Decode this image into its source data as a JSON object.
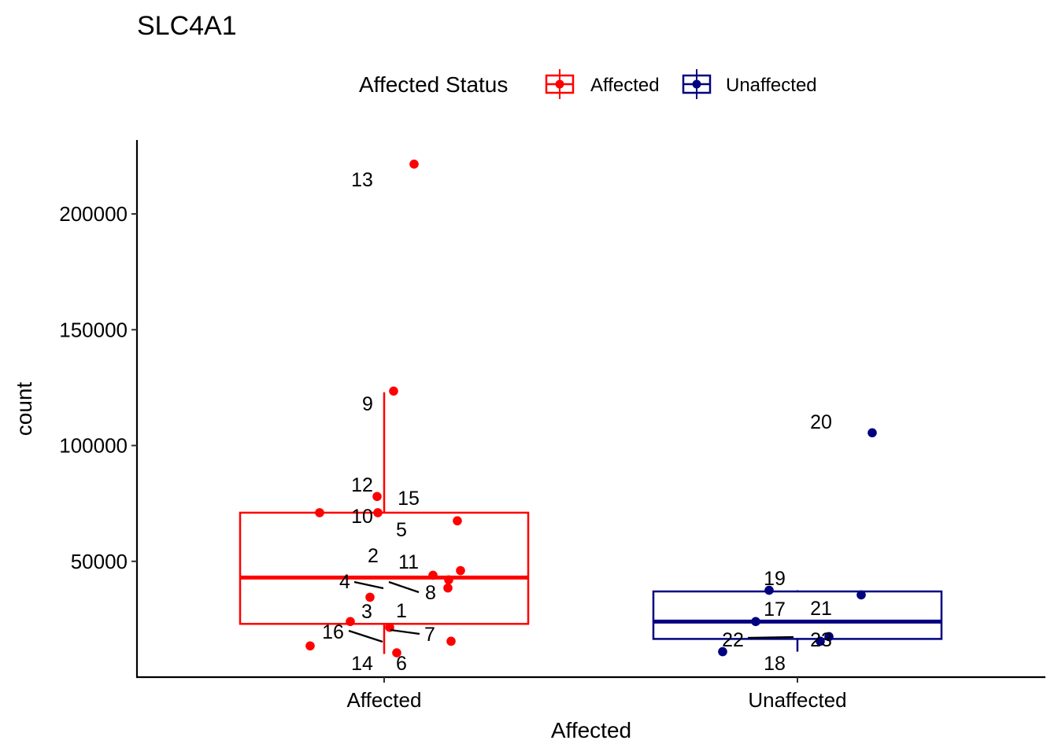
{
  "chart_data": {
    "type": "box",
    "title": "SLC4A1",
    "xlabel": "Affected",
    "ylabel": "count",
    "ylim": [
      0,
      230000
    ],
    "y_ticks": [
      50000,
      100000,
      150000,
      200000
    ],
    "y_tick_labels": [
      "50000",
      "100000",
      "150000",
      "200000"
    ],
    "categories": [
      "Affected",
      "Unaffected"
    ],
    "legend": {
      "title": "Affected Status",
      "position": "top",
      "entries": [
        {
          "label": "Affected",
          "color": "#ff0000"
        },
        {
          "label": "Unaffected",
          "color": "#000080"
        }
      ]
    },
    "grid": false,
    "boxes": [
      {
        "group": "Affected",
        "color": "#ff0000",
        "whisker_low": 10000,
        "q1": 23000,
        "median": 43000,
        "q3": 71000,
        "whisker_high": 123000
      },
      {
        "group": "Unaffected",
        "color": "#000080",
        "whisker_low": 11000,
        "q1": 16500,
        "median": 24000,
        "q3": 37000,
        "whisker_high": 37500
      }
    ],
    "points": [
      {
        "label": "1",
        "group": "Affected",
        "value": 21500
      },
      {
        "label": "2",
        "group": "Affected",
        "value": 44000
      },
      {
        "label": "3",
        "group": "Affected",
        "value": 24000
      },
      {
        "label": "4",
        "group": "Affected",
        "value": 42000
      },
      {
        "label": "5",
        "group": "Affected",
        "value": 67500
      },
      {
        "label": "6",
        "group": "Affected",
        "value": 10500
      },
      {
        "label": "7",
        "group": "Affected",
        "value": 15500
      },
      {
        "label": "8",
        "group": "Affected",
        "value": 38500
      },
      {
        "label": "9",
        "group": "Affected",
        "value": 123500
      },
      {
        "label": "10",
        "group": "Affected",
        "value": 71000
      },
      {
        "label": "11",
        "group": "Affected",
        "value": 46000
      },
      {
        "label": "12",
        "group": "Affected",
        "value": 78000
      },
      {
        "label": "13",
        "group": "Affected",
        "value": 221500
      },
      {
        "label": "14",
        "group": "Affected",
        "value": 13500
      },
      {
        "label": "15",
        "group": "Affected",
        "value": 71000
      },
      {
        "label": "16",
        "group": "Affected",
        "value": 34500
      },
      {
        "label": "17",
        "group": "Unaffected",
        "value": 24000
      },
      {
        "label": "18",
        "group": "Unaffected",
        "value": 11000
      },
      {
        "label": "19",
        "group": "Unaffected",
        "value": 37500
      },
      {
        "label": "20",
        "group": "Unaffected",
        "value": 105500
      },
      {
        "label": "21",
        "group": "Unaffected",
        "value": 35500
      },
      {
        "label": "22",
        "group": "Unaffected",
        "value": 17500
      },
      {
        "label": "23",
        "group": "Unaffected",
        "value": 15500
      }
    ]
  }
}
